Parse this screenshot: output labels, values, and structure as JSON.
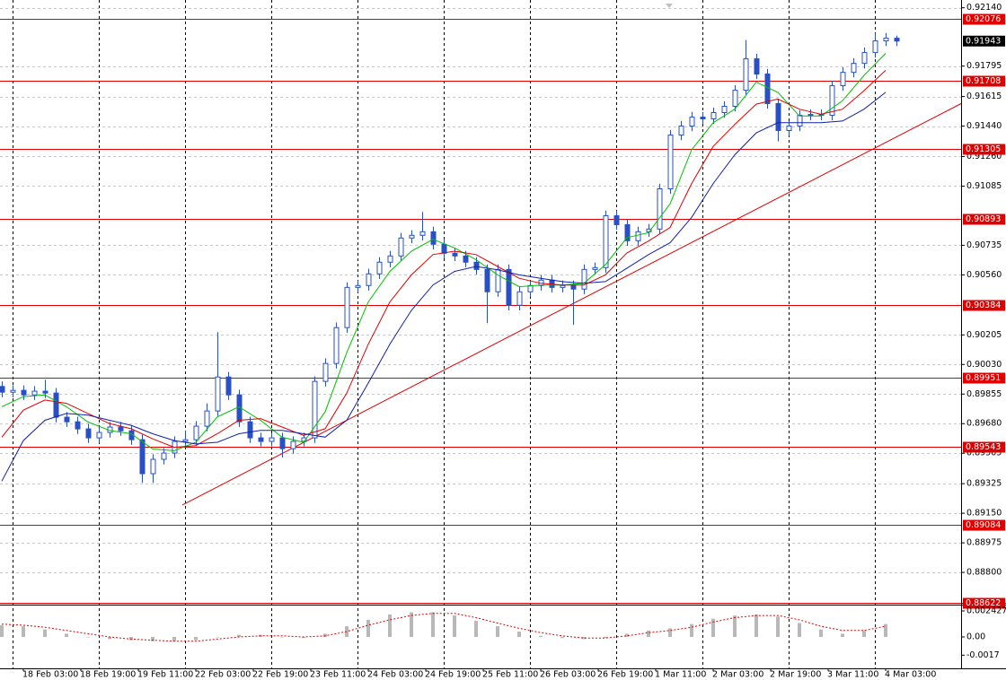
{
  "chart_data": {
    "type": "candlestick",
    "color": "#2a4fc0",
    "grid": true,
    "xlim": [
      -0.5,
      267
    ],
    "ylim": [
      0.8862,
      0.9217
    ],
    "x": [
      0,
      3,
      6,
      9,
      12,
      15,
      18,
      21,
      24,
      27,
      30,
      33,
      36,
      39,
      42,
      45,
      48,
      51,
      54,
      57,
      60,
      63,
      66,
      69,
      72,
      75,
      78,
      81,
      84,
      87,
      90,
      93,
      96,
      99,
      102,
      105,
      108,
      111,
      114,
      117,
      120,
      123,
      126,
      129,
      132,
      135,
      138,
      141,
      144,
      147,
      150,
      153,
      156,
      159,
      162,
      165,
      168,
      171,
      174,
      177,
      180,
      183,
      186,
      189,
      192,
      195,
      198,
      201,
      204,
      207,
      210,
      213,
      216,
      219,
      222,
      225,
      228,
      231,
      234,
      237,
      240,
      243,
      246,
      249
    ],
    "open": [
      0.899,
      0.89866,
      0.89877,
      0.8985,
      0.89872,
      0.89861,
      0.89718,
      0.89691,
      0.89649,
      0.89596,
      0.89628,
      0.8966,
      0.89638,
      0.89585,
      0.89384,
      0.89469,
      0.89506,
      0.89575,
      0.89585,
      0.89665,
      0.89755,
      0.89956,
      0.8985,
      0.89691,
      0.89596,
      0.89575,
      0.89596,
      0.89532,
      0.89575,
      0.89596,
      0.8993,
      0.90036,
      0.90248,
      0.90486,
      0.90497,
      0.90566,
      0.90635,
      0.90672,
      0.90778,
      0.90794,
      0.90815,
      0.90741,
      0.90688,
      0.90672,
      0.90635,
      0.90592,
      0.9046,
      0.90592,
      0.9038,
      0.9046,
      0.90497,
      0.90529,
      0.90486,
      0.90497,
      0.90476,
      0.90592,
      0.90603,
      0.9091,
      0.90857,
      0.90762,
      0.90815,
      0.90831,
      0.91069,
      0.91387,
      0.9144,
      0.91493,
      0.91483,
      0.9152,
      0.91557,
      0.91652,
      0.91838,
      0.91748,
      0.91573,
      0.91414,
      0.9144,
      0.91504,
      0.91509,
      0.91504,
      0.91679,
      0.91758,
      0.91811,
      0.91875,
      0.91944,
      0.9196
    ],
    "high": [
      0.8993,
      0.89907,
      0.89907,
      0.89902,
      0.8994,
      0.89891,
      0.89748,
      0.89721,
      0.89679,
      0.89658,
      0.8969,
      0.8969,
      0.89668,
      0.89615,
      0.89499,
      0.89536,
      0.89605,
      0.8964,
      0.89695,
      0.898,
      0.90221,
      0.89986,
      0.8988,
      0.89721,
      0.89626,
      0.89626,
      0.89626,
      0.89605,
      0.89626,
      0.8996,
      0.90066,
      0.90278,
      0.90516,
      0.90527,
      0.90596,
      0.90665,
      0.90702,
      0.90808,
      0.90824,
      0.90932,
      0.90845,
      0.90771,
      0.90718,
      0.90702,
      0.90665,
      0.90622,
      0.90622,
      0.90622,
      0.9049,
      0.90527,
      0.90559,
      0.90559,
      0.90527,
      0.90527,
      0.90622,
      0.90633,
      0.9094,
      0.9094,
      0.90887,
      0.90845,
      0.90861,
      0.91099,
      0.91417,
      0.9147,
      0.91523,
      0.91523,
      0.9155,
      0.91587,
      0.91682,
      0.91949,
      0.91868,
      0.91778,
      0.91603,
      0.9147,
      0.91534,
      0.91539,
      0.91539,
      0.91709,
      0.91788,
      0.91841,
      0.91905,
      0.9199,
      0.9199,
      0.91975
    ],
    "low": [
      0.89836,
      0.89836,
      0.8982,
      0.8982,
      0.89831,
      0.89688,
      0.89661,
      0.89619,
      0.89566,
      0.89566,
      0.89598,
      0.89608,
      0.89555,
      0.8933,
      0.8933,
      0.89439,
      0.89476,
      0.89545,
      0.89555,
      0.89635,
      0.89725,
      0.8982,
      0.89661,
      0.89566,
      0.89545,
      0.89545,
      0.8948,
      0.89502,
      0.89545,
      0.89566,
      0.899,
      0.90006,
      0.90218,
      0.90456,
      0.90467,
      0.90536,
      0.90605,
      0.90642,
      0.90748,
      0.90764,
      0.90711,
      0.90658,
      0.90642,
      0.90605,
      0.90562,
      0.90274,
      0.9043,
      0.9035,
      0.9035,
      0.9043,
      0.90467,
      0.90456,
      0.90456,
      0.90264,
      0.90446,
      0.90562,
      0.90573,
      0.90827,
      0.90732,
      0.90732,
      0.90785,
      0.90801,
      0.91039,
      0.91357,
      0.9141,
      0.91453,
      0.91453,
      0.9149,
      0.91527,
      0.91622,
      0.91718,
      0.91543,
      0.9135,
      0.91384,
      0.9141,
      0.91474,
      0.91474,
      0.91474,
      0.91649,
      0.91728,
      0.91781,
      0.91845,
      0.91914,
      0.91913
    ],
    "close": [
      0.89866,
      0.89877,
      0.8985,
      0.89872,
      0.89861,
      0.89718,
      0.89691,
      0.89649,
      0.89596,
      0.89628,
      0.8966,
      0.89638,
      0.89585,
      0.89384,
      0.89469,
      0.89506,
      0.89575,
      0.89585,
      0.89665,
      0.89755,
      0.89956,
      0.8985,
      0.89691,
      0.89596,
      0.89575,
      0.89596,
      0.89532,
      0.89575,
      0.89596,
      0.8993,
      0.90036,
      0.90248,
      0.90486,
      0.90497,
      0.90566,
      0.90635,
      0.90672,
      0.90778,
      0.90794,
      0.90815,
      0.90741,
      0.90688,
      0.90672,
      0.90635,
      0.90592,
      0.9046,
      0.90592,
      0.9038,
      0.9046,
      0.90497,
      0.90529,
      0.90486,
      0.90497,
      0.90476,
      0.90592,
      0.90603,
      0.9091,
      0.90857,
      0.90762,
      0.90815,
      0.90831,
      0.91069,
      0.91387,
      0.9144,
      0.91493,
      0.91483,
      0.9152,
      0.91557,
      0.91652,
      0.91838,
      0.91748,
      0.91573,
      0.91414,
      0.9144,
      0.91504,
      0.91509,
      0.91504,
      0.91679,
      0.91758,
      0.91811,
      0.91875,
      0.91944,
      0.9196,
      0.91943
    ],
    "indicator_x": [
      0,
      6,
      12,
      18,
      24,
      30,
      36,
      42,
      48,
      54,
      60,
      66,
      72,
      78,
      84,
      90,
      96,
      102,
      108,
      114,
      120,
      126,
      132,
      138,
      144,
      150,
      156,
      162,
      168,
      174,
      180,
      186,
      192,
      198,
      204,
      210,
      216,
      222,
      228,
      234,
      240,
      246
    ],
    "moving_averages": [
      {
        "color": "#00c000",
        "values": [
          0.8978,
          0.8984,
          0.8985,
          0.8978,
          0.8969,
          0.8964,
          0.8962,
          0.8953,
          0.8952,
          0.8957,
          0.8972,
          0.8978,
          0.897,
          0.896,
          0.8957,
          0.8975,
          0.901,
          0.904,
          0.9058,
          0.907,
          0.9077,
          0.9072,
          0.9065,
          0.9056,
          0.9049,
          0.905,
          0.905,
          0.9051,
          0.9062,
          0.9078,
          0.9081,
          0.9098,
          0.913,
          0.9146,
          0.9154,
          0.917,
          0.9164,
          0.915,
          0.915,
          0.9159,
          0.9174,
          0.9187
        ]
      },
      {
        "color": "#e00000",
        "values": [
          0.896,
          0.8976,
          0.8982,
          0.898,
          0.8974,
          0.8968,
          0.8965,
          0.8959,
          0.8954,
          0.8955,
          0.8962,
          0.897,
          0.8971,
          0.8966,
          0.8961,
          0.8965,
          0.8986,
          0.9015,
          0.904,
          0.9056,
          0.9068,
          0.907,
          0.9068,
          0.9061,
          0.9054,
          0.9051,
          0.905,
          0.905,
          0.9056,
          0.9069,
          0.9076,
          0.9084,
          0.911,
          0.9132,
          0.9145,
          0.9157,
          0.916,
          0.9154,
          0.9151,
          0.9154,
          0.9165,
          0.9177
        ]
      },
      {
        "color": "#1020b0",
        "values": [
          0.8934,
          0.8958,
          0.897,
          0.8974,
          0.8973,
          0.897,
          0.8967,
          0.8962,
          0.8958,
          0.8956,
          0.8957,
          0.8962,
          0.8964,
          0.8964,
          0.8962,
          0.896,
          0.897,
          0.8992,
          0.9015,
          0.9035,
          0.905,
          0.9058,
          0.9061,
          0.9059,
          0.9056,
          0.9054,
          0.9052,
          0.9051,
          0.9052,
          0.906,
          0.9068,
          0.9075,
          0.909,
          0.911,
          0.9127,
          0.914,
          0.9146,
          0.9146,
          0.9146,
          0.9147,
          0.9154,
          0.9164
        ]
      }
    ],
    "levels": {
      "color": "#e00000",
      "values": [
        0.92076,
        0.91708,
        0.91305,
        0.90893,
        0.90384,
        0.89951,
        0.89543,
        0.89084,
        0.88622
      ]
    },
    "current_price": 0.91943,
    "trendline": {
      "color": "#e00000",
      "x": [
        50.25,
        267
      ],
      "y": [
        0.89199,
        0.91573
      ]
    },
    "yticks": [
      {
        "value": 0.9214,
        "label": "0.92140"
      },
      0.91795,
      0.91615,
      {
        "value": 0.9144,
        "label": "0.91440"
      },
      {
        "value": 0.9126,
        "label": "0.91260"
      },
      0.91085,
      0.90735,
      {
        "value": 0.9056,
        "label": "0.90560"
      },
      0.90205,
      {
        "value": 0.9003,
        "label": "0.90030"
      },
      0.89855,
      {
        "value": 0.8968,
        "label": "0.89680"
      },
      0.89505,
      0.89325,
      {
        "value": 0.8915,
        "label": "0.89150"
      },
      0.88975,
      {
        "value": 0.888,
        "label": "0.88800"
      }
    ],
    "xgrid": [
      3,
      27,
      51,
      75,
      99,
      123,
      147,
      171,
      195,
      219,
      243
    ],
    "xticks": [
      {
        "value": 6,
        "label": "18 Feb 03:00"
      },
      {
        "value": 22,
        "label": "18 Feb 19:00"
      },
      {
        "value": 38,
        "label": "19 Feb 11:00"
      },
      {
        "value": 54,
        "label": "22 Feb 03:00"
      },
      {
        "value": 70,
        "label": "22 Feb 19:00"
      },
      {
        "value": 86,
        "label": "23 Feb 11:00"
      },
      {
        "value": 102,
        "label": "24 Feb 03:00"
      },
      {
        "value": 118,
        "label": "24 Feb 19:00"
      },
      {
        "value": 134,
        "label": "25 Feb 11:00"
      },
      {
        "value": 150,
        "label": "26 Feb 03:00"
      },
      {
        "value": 166,
        "label": "26 Feb 19:00"
      },
      {
        "value": 182,
        "label": "1 Mar 11:00"
      },
      {
        "value": 198,
        "label": "2 Mar 03:00"
      },
      {
        "value": 214,
        "label": "2 Mar 19:00"
      },
      {
        "value": 230,
        "label": "3 Mar 11:00"
      },
      {
        "value": 246,
        "label": "4 Mar 03:00"
      }
    ],
    "oscillator": {
      "type": "histogram",
      "color": "#b8b8b8",
      "signal_color": "#e00000",
      "ylim": [
        -0.00293,
        0.00293
      ],
      "yticks": [
        0.002427,
        {
          "value": 0,
          "label": "0.00"
        },
        -0.0017
      ],
      "values": [
        0.0011,
        0.001,
        0.0007,
        0.0003,
        0.0,
        -0.0002,
        -0.0003,
        -0.0004,
        -0.0004,
        -0.0003,
        0.0,
        0.0002,
        0.0002,
        0.0,
        -0.0001,
        0.0003,
        0.001,
        0.0016,
        0.0021,
        0.0023,
        0.0023,
        0.002,
        0.0015,
        0.001,
        0.0005,
        0.0001,
        -0.0001,
        -0.0002,
        -0.0001,
        0.0003,
        0.0006,
        0.0008,
        0.0012,
        0.0017,
        0.002,
        0.0021,
        0.0019,
        0.0013,
        0.0007,
        0.0003,
        0.0006,
        0.0012
      ],
      "signal": [
        0.0012,
        0.0011,
        0.0009,
        0.0006,
        0.0003,
        0.0,
        -0.0002,
        -0.0003,
        -0.0004,
        -0.0004,
        -0.0002,
        0.0,
        0.0001,
        0.0001,
        0.0,
        0.0001,
        0.0005,
        0.0011,
        0.0016,
        0.002,
        0.0022,
        0.0022,
        0.0018,
        0.0013,
        0.0008,
        0.0004,
        0.0001,
        -0.0001,
        -0.0001,
        0.0001,
        0.0004,
        0.0006,
        0.0009,
        0.0014,
        0.0018,
        0.002,
        0.002,
        0.0016,
        0.001,
        0.0006,
        0.0006,
        0.001
      ]
    }
  }
}
